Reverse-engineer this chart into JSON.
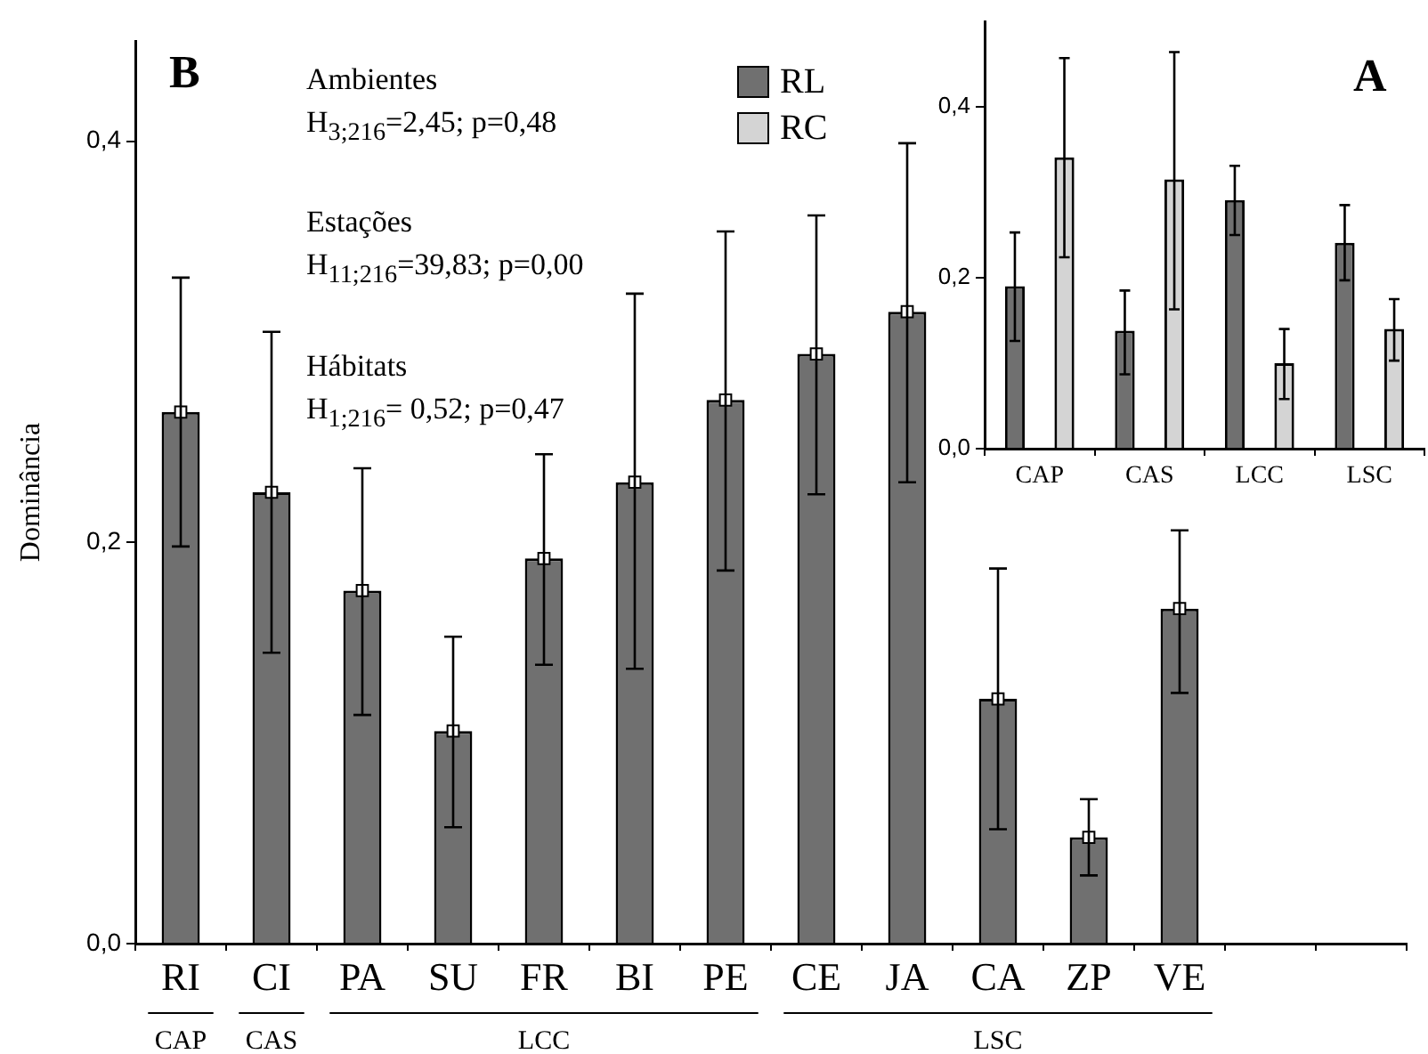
{
  "chart_data": [
    {
      "type": "bar",
      "title": "B",
      "ylabel": "Dominância",
      "categories": [
        "RI",
        "CI",
        "PA",
        "SU",
        "FR",
        "BI",
        "PE",
        "CE",
        "JA",
        "CA",
        "ZP",
        "VE",
        null,
        null
      ],
      "series": [
        {
          "color": "#707070",
          "values": [
            0.265,
            0.225,
            0.176,
            0.106,
            0.192,
            0.23,
            0.271,
            0.294,
            0.315,
            0.122,
            0.053,
            0.167,
            null,
            null
          ],
          "errors": [
            [
              0.198,
              0.332
            ],
            [
              0.145,
              0.305
            ],
            [
              0.114,
              0.237
            ],
            [
              0.058,
              0.153
            ],
            [
              0.139,
              0.244
            ],
            [
              0.137,
              0.324
            ],
            [
              0.186,
              0.355
            ],
            [
              0.224,
              0.363
            ],
            [
              0.23,
              0.399
            ],
            [
              0.057,
              0.187
            ],
            [
              0.034,
              0.072
            ],
            [
              0.125,
              0.206
            ],
            null,
            null
          ]
        },
        {
          "type": "scatter",
          "x": [
            "RI",
            "CI",
            "PA",
            "SU",
            "FR",
            "BI",
            "PE",
            "CE",
            "JA",
            "CA",
            "ZP",
            "VE"
          ],
          "values": [
            0.265,
            0.225,
            0.176,
            0.106,
            0.192,
            0.23,
            0.271,
            0.294,
            0.315,
            0.122,
            0.053,
            0.167
          ],
          "color": "#ffffff",
          "marker": "square"
        }
      ],
      "ylim": [
        0,
        0.45
      ],
      "yticks": [
        {
          "value": 0,
          "label": "0,0"
        },
        {
          "value": 0.2,
          "label": "0,2"
        },
        {
          "value": 0.4,
          "label": "0,4"
        }
      ],
      "annotations": [
        "Ambientes",
        "H$_{3;216}$=2,45; p=0,48",
        "Estações",
        "H$_{11;216}$=39,83; p=0,00",
        "Hábitats",
        "H$_{1;216}$= 0,52; p=0,47",
        "CAP",
        "CAS",
        "LCC",
        "LSC"
      ]
    },
    {
      "type": "bar",
      "title": "A",
      "categories": [
        "CAP",
        "CAS",
        "LCC",
        "LSC"
      ],
      "series": [
        {
          "name": "RL",
          "color": "#707070",
          "values": [
            0.19,
            0.138,
            0.291,
            0.241
          ],
          "errors": [
            [
              0.126,
              0.253
            ],
            [
              0.087,
              0.185
            ],
            [
              0.25,
              0.331
            ],
            [
              0.197,
              0.285
            ]
          ]
        },
        {
          "name": "RC",
          "color": "#d4d4d4",
          "values": [
            0.341,
            0.315,
            0.1,
            0.14
          ],
          "errors": [
            [
              0.224,
              0.457
            ],
            [
              0.163,
              0.464
            ],
            [
              0.058,
              0.14
            ],
            [
              0.103,
              0.175
            ]
          ]
        }
      ],
      "ylim": [
        0,
        0.5
      ],
      "yticks": [
        {
          "value": 0,
          "label": "0,0"
        },
        {
          "value": 0.2,
          "label": "0,2"
        },
        {
          "value": 0.4,
          "label": "0,4"
        }
      ],
      "legend": "left"
    }
  ]
}
